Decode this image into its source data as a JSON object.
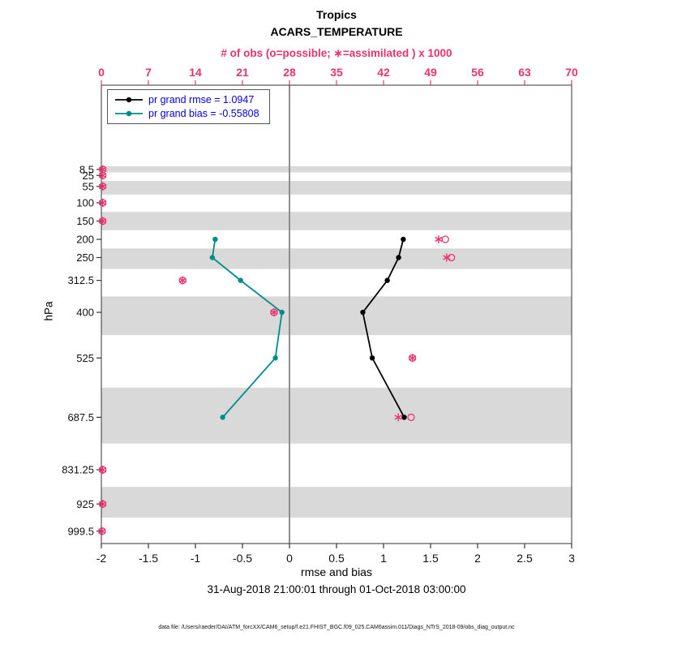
{
  "header": {
    "region": "Tropics",
    "variable": "ACARS_TEMPERATURE"
  },
  "top_axis_label": "# of obs (o=possible; ∗=assimilated ) x 1000",
  "y_axis": {
    "label": "hPa"
  },
  "x_axis": {
    "label": "rmse and bias"
  },
  "legend": {
    "items": [
      {
        "label": "pr grand rmse = 1.0947",
        "series": "rmse"
      },
      {
        "label": "pr grand bias = -0.55808",
        "series": "bias"
      }
    ]
  },
  "footer": {
    "date_range": "31-Aug-2018 21:00:01 through 01-Oct-2018 03:00:00",
    "data_file": "data file: /Users/raeder/DAI/ATM_forcXX/CAM6_setup/f.e21.FHIST_BGC.f09_025.CAM6assim.011/Diags_NTrS_2018-09/obs_diag_output.nc"
  },
  "colors": {
    "obs": "#e8336d",
    "band": "#d9d9d9",
    "zero_line": "#8f8f8f",
    "axis": "#333333",
    "legend_text": "#0000dd"
  },
  "chart_data": {
    "type": "line",
    "title": "Tropics ACARS_TEMPERATURE",
    "xlabel": "rmse and bias",
    "ylabel": "hPa",
    "top_xlabel": "# of obs (o=possible; ∗=assimilated ) x 1000",
    "x_range": [
      -2,
      3
    ],
    "x_ticks": [
      -2,
      -1.5,
      -1,
      -0.5,
      0,
      0.5,
      1,
      1.5,
      2,
      2.5,
      3
    ],
    "top_range": [
      0,
      70
    ],
    "top_ticks": [
      0,
      7,
      14,
      21,
      28,
      35,
      42,
      49,
      56,
      63,
      70
    ],
    "levels": [
      8.5,
      25,
      55,
      100,
      150,
      200,
      250,
      312.5,
      400,
      525,
      687.5,
      831.25,
      925,
      999.5
    ],
    "banded_levels": [
      8.5,
      55,
      150,
      250,
      400,
      687.5,
      925
    ],
    "series": [
      {
        "name": "pr grand rmse",
        "grand_value": 1.0947,
        "color": "#000000",
        "points": [
          {
            "level": 200,
            "value": 1.21
          },
          {
            "level": 250,
            "value": 1.16
          },
          {
            "level": 312.5,
            "value": 1.04
          },
          {
            "level": 400,
            "value": 0.78
          },
          {
            "level": 525,
            "value": 0.88
          },
          {
            "level": 687.5,
            "value": 1.22
          }
        ]
      },
      {
        "name": "pr grand bias",
        "grand_value": -0.55808,
        "color": "#008b8b",
        "points": [
          {
            "level": 200,
            "value": -0.79
          },
          {
            "level": 250,
            "value": -0.82
          },
          {
            "level": 312.5,
            "value": -0.52
          },
          {
            "level": 400,
            "value": -0.08
          },
          {
            "level": 525,
            "value": -0.15
          },
          {
            "level": 687.5,
            "value": -0.71
          }
        ]
      }
    ],
    "obs_counts_x1000": [
      {
        "level": 8.5,
        "possible": 0.2,
        "assimilated": 0.2
      },
      {
        "level": 25,
        "possible": 0.2,
        "assimilated": 0.2
      },
      {
        "level": 55,
        "possible": 0.2,
        "assimilated": 0.2
      },
      {
        "level": 100,
        "possible": 0.2,
        "assimilated": 0.2
      },
      {
        "level": 150,
        "possible": 0.2,
        "assimilated": 0.2
      },
      {
        "level": 200,
        "possible": 51.2,
        "assimilated": 50.2
      },
      {
        "level": 250,
        "possible": 52.1,
        "assimilated": 51.4
      },
      {
        "level": 312.5,
        "possible": 12.1,
        "assimilated": 12.1
      },
      {
        "level": 400,
        "possible": 25.7,
        "assimilated": 25.7
      },
      {
        "level": 525,
        "possible": 46.3,
        "assimilated": 46.3
      },
      {
        "level": 687.5,
        "possible": 46.1,
        "assimilated": 44.2
      },
      {
        "level": 831.25,
        "possible": 0.2,
        "assimilated": 0.2
      },
      {
        "level": 925,
        "possible": 0.2,
        "assimilated": 0.2
      },
      {
        "level": 999.5,
        "possible": 0.1,
        "assimilated": 0.1
      }
    ]
  }
}
